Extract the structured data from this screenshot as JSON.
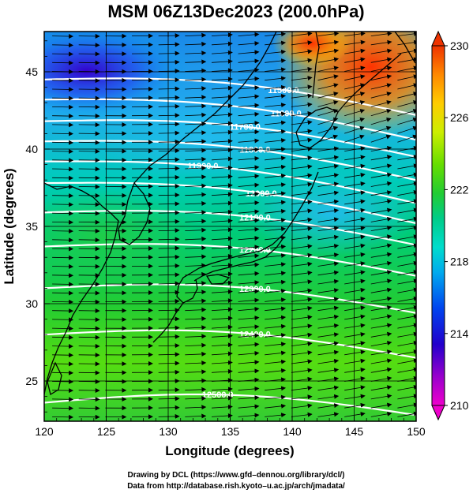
{
  "chart_data": {
    "type": "heatmap",
    "title": "MSM 06Z13Dec2023 (200.0hPa)",
    "xlabel": "Longitude (degrees)",
    "ylabel": "Latitude  (degrees)",
    "xlim": [
      120,
      150
    ],
    "ylim": [
      22.4,
      47.6
    ],
    "xticks": [
      120,
      125,
      130,
      135,
      140,
      145,
      150
    ],
    "yticks": [
      25,
      30,
      35,
      40,
      45
    ],
    "colorbar": {
      "range": [
        210,
        230
      ],
      "ticks": [
        210,
        214,
        218,
        222,
        226,
        230
      ],
      "colors": [
        "#ee00cc",
        "#9900cc",
        "#2200cc",
        "#0044ee",
        "#00aaee",
        "#00ddcc",
        "#00cc88",
        "#22cc33",
        "#66dd00",
        "#ccee00",
        "#ffcc00",
        "#ff8800",
        "#ee3300"
      ]
    },
    "contours": [
      {
        "label": "11500.0",
        "lat_west": 44.5,
        "lat_east": 42.2,
        "label_lon": 139.3
      },
      {
        "label": "11600.0",
        "lat_west": 43.2,
        "lat_east": 40.6,
        "label_lon": 139.5
      },
      {
        "label": "11700.0",
        "lat_west": 41.8,
        "lat_east": 39.5,
        "label_lon": 136.2
      },
      {
        "label": "11800.0",
        "lat_west": 40.5,
        "lat_east": 38.0,
        "label_lon": 137.0
      },
      {
        "label": "11900.0",
        "lat_west": 39.2,
        "lat_east": 36.5,
        "label_lon": 132.8
      },
      {
        "label": "12000.0",
        "lat_west": 37.8,
        "lat_east": 35.2,
        "label_lon": 137.5
      },
      {
        "label": "12100.0",
        "lat_west": 35.9,
        "lat_east": 33.8,
        "label_lon": 137.0
      },
      {
        "label": "12200.0",
        "lat_west": 33.7,
        "lat_east": 31.8,
        "label_lon": 137.0
      },
      {
        "label": "12300.0",
        "lat_west": 31.0,
        "lat_east": 29.4,
        "label_lon": 137.0
      },
      {
        "label": "12400.0",
        "lat_west": 28.0,
        "lat_east": 26.5,
        "label_lon": 137.0
      },
      {
        "label": "12500.0",
        "lat_west": 23.6,
        "lat_east": 22.8,
        "label_lon": 134.0
      }
    ]
  },
  "credits": {
    "line1": "Drawing by DCL (https://www.gfd–dennou.org/library/dcl/)",
    "line2": "Data from http://database.rish.kyoto–u.ac.jp/arch/jmadata/"
  }
}
